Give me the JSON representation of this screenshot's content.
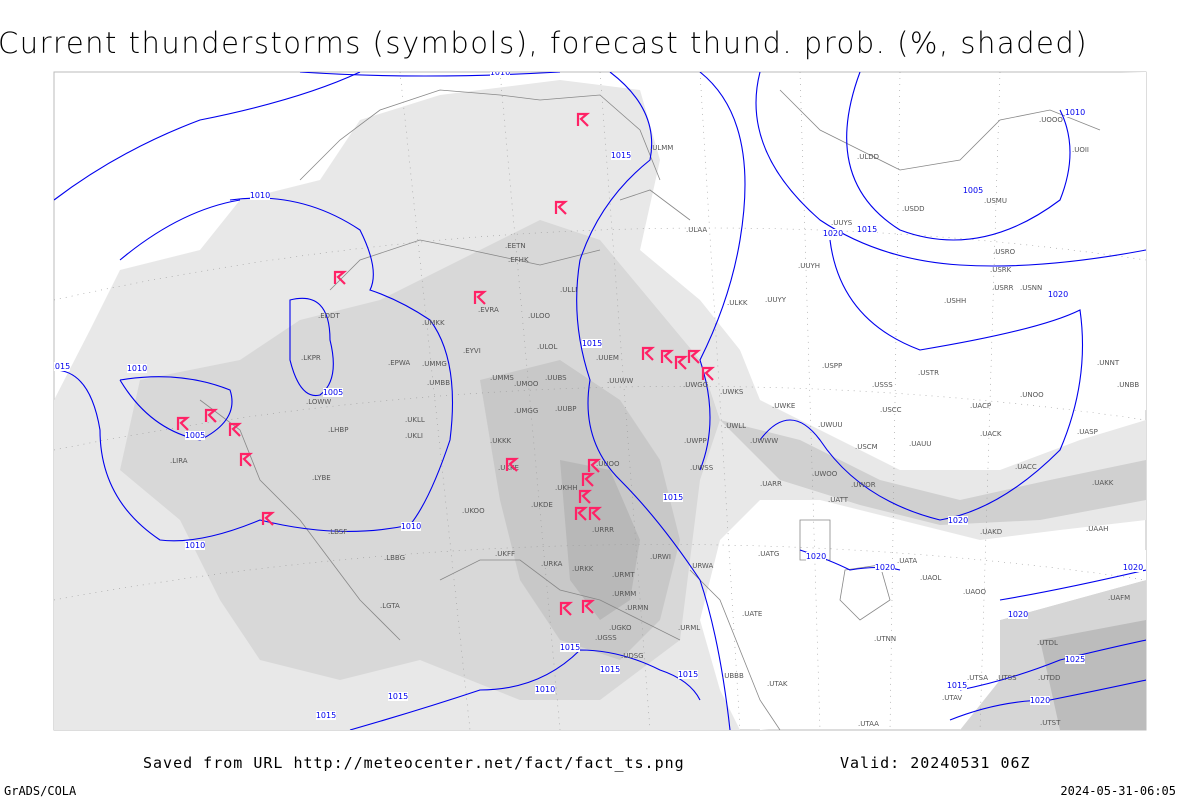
{
  "title": "Current thunderstorms (symbols), forecast thund. prob. (%, shaded)",
  "footer": {
    "saved": "Saved from URL http://meteocenter.net/fact/fact_ts.png",
    "valid": "Valid: 20240531 06Z",
    "software": "GrADS/COLA",
    "timestamp": "2024-05-31-06:05"
  },
  "colors": {
    "isobar": "#0000ee",
    "thunderstorm_symbol": "#ff2266",
    "shading_light": "#e6e6e6",
    "shading_mid": "#d2d2d2",
    "shading_dark": "#b8b8b8",
    "coastline": "#888888"
  },
  "map": {
    "icons": [
      "thunderstorm-symbol-icon"
    ],
    "stations": [
      "ULMM",
      "ULAA",
      "EETN",
      "EFHK",
      "ULLI",
      "ULOO",
      "EVRA",
      "ULOL",
      "UUEM",
      "UUWW",
      "UMMS",
      "UMOO",
      "UUBS",
      "UMGG",
      "UUBP",
      "UUOO",
      "UKKK",
      "UKHH",
      "UKDE",
      "UKOO",
      "UKFF",
      "URKA",
      "URKK",
      "URMT",
      "URRR",
      "URWI",
      "URWA",
      "URMM",
      "URMN",
      "URML",
      "UGKO",
      "UGSS",
      "UDSG",
      "UBBB",
      "UTAK",
      "UTNN",
      "UTSA",
      "UTSS",
      "UTAV",
      "UTAA",
      "UTST",
      "UTDD",
      "UTDL",
      "UUYY",
      "UUYH",
      "ULKK",
      "USPP",
      "USSS",
      "USCC",
      "USTR",
      "UWKS",
      "UWGG",
      "UWPP",
      "UWWW",
      "UWKE",
      "UWUU",
      "USCM",
      "UAUU",
      "UWSS",
      "UARR",
      "UWOO",
      "UWOR",
      "UATT",
      "UATG",
      "UATA",
      "UAOL",
      "UAOO",
      "UACC",
      "UACK",
      "UACP",
      "UNOO",
      "UASP",
      "UAKK",
      "UAKD",
      "UAAH",
      "UAFM",
      "USRR",
      "USNN",
      "USRK",
      "USRO",
      "USHH",
      "USMU",
      "USDD",
      "UUYS",
      "ULDD",
      "UOOO",
      "UOII",
      "UNNT",
      "UNBB",
      "EPWA",
      "UMMG",
      "UMBB",
      "UKLL",
      "UKLI",
      "LHBP",
      "LOWW",
      "LKPR",
      "LIRA",
      "LYBE",
      "LBSF",
      "LBBG",
      "LGTA",
      "EYVI",
      "UMKK",
      "UKKE",
      "EDDT",
      "UWLL",
      "UATE"
    ],
    "isobar_labels": [
      "1010",
      "1010",
      "1015",
      "1005",
      "1015",
      "1020",
      "1020",
      "1010",
      "1015",
      "1010",
      "1005",
      "1005",
      "1015",
      "1015",
      "1010",
      "1010",
      "1020",
      "1020",
      "1020",
      "1020",
      "1015",
      "1015",
      "1015",
      "1010",
      "1015",
      "1015",
      "1025",
      "1015",
      "1020",
      "1020"
    ]
  }
}
